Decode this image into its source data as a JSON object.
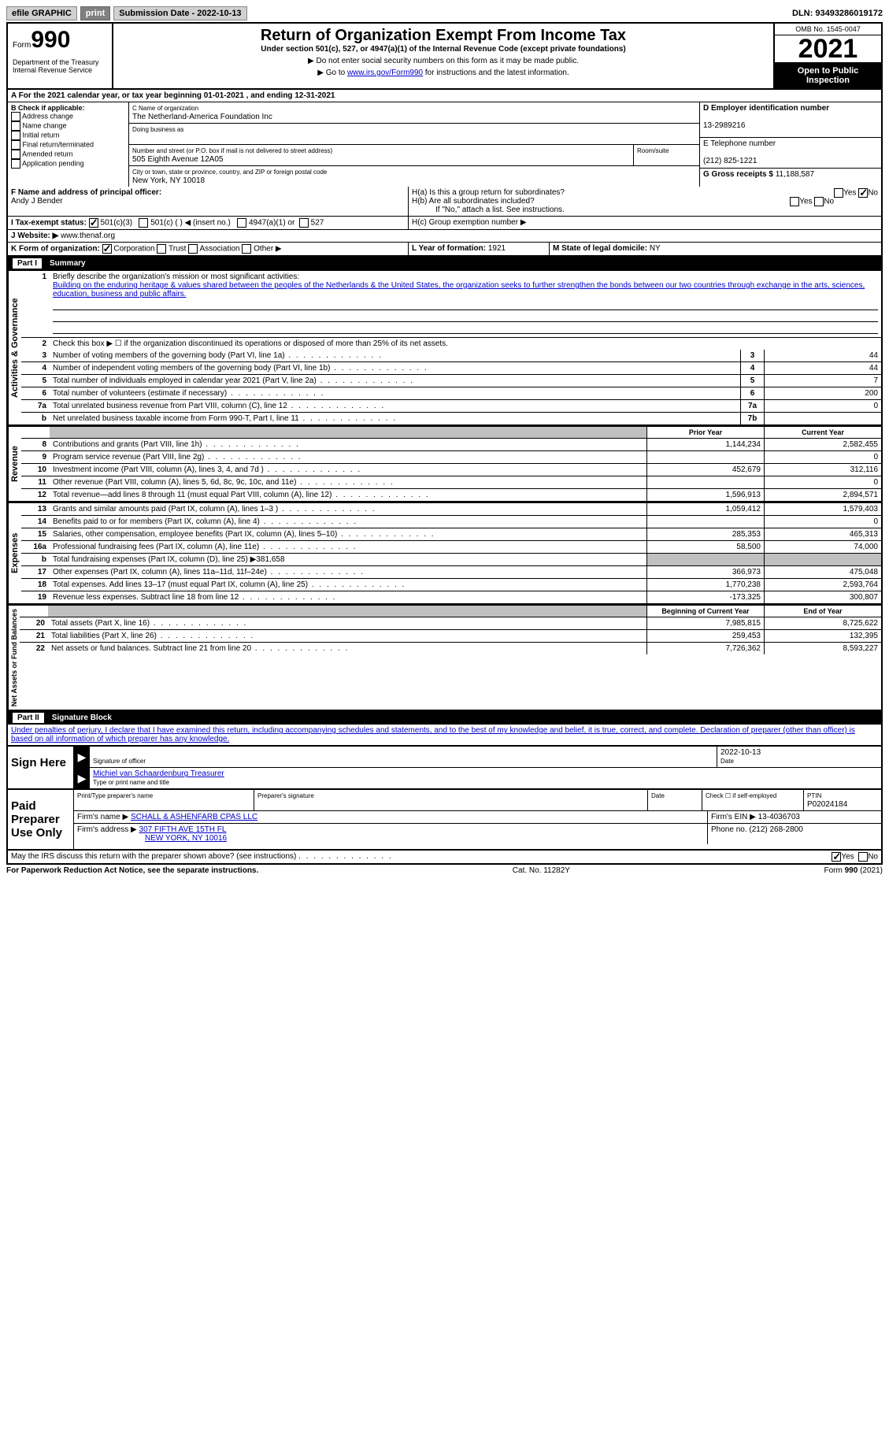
{
  "topbar": {
    "efile": "efile GRAPHIC",
    "print": "print",
    "submission_label": "Submission Date - ",
    "submission_date": "2022-10-13",
    "dln_label": "DLN: ",
    "dln": "93493286019172"
  },
  "header": {
    "form_label": "Form",
    "form_number": "990",
    "dept": "Department of the Treasury\nInternal Revenue Service",
    "title": "Return of Organization Exempt From Income Tax",
    "subtitle": "Under section 501(c), 527, or 4947(a)(1) of the Internal Revenue Code (except private foundations)",
    "note1": "▶ Do not enter social security numbers on this form as it may be made public.",
    "note2_pre": "▶ Go to ",
    "note2_link": "www.irs.gov/Form990",
    "note2_post": " for instructions and the latest information.",
    "omb": "OMB No. 1545-0047",
    "year": "2021",
    "open": "Open to Public Inspection"
  },
  "box_a": "A For the 2021 calendar year, or tax year beginning 01-01-2021   , and ending 12-31-2021",
  "box_b": {
    "label": "B Check if applicable:",
    "items": [
      "Address change",
      "Name change",
      "Initial return",
      "Final return/terminated",
      "Amended return",
      "Application pending"
    ]
  },
  "box_c": {
    "name_label": "C Name of organization",
    "name": "The Netherland-America Foundation Inc",
    "dba_label": "Doing business as",
    "dba": "",
    "addr_label": "Number and street (or P.O. box if mail is not delivered to street address)",
    "room_label": "Room/suite",
    "addr": "505 Eighth Avenue 12A05",
    "city_label": "City or town, state or province, country, and ZIP or foreign postal code",
    "city": "New York, NY  10018"
  },
  "box_d": {
    "label": "D Employer identification number",
    "value": "13-2989216"
  },
  "box_e": {
    "label": "E Telephone number",
    "value": "(212) 825-1221"
  },
  "box_g": {
    "label": "G Gross receipts $ ",
    "value": "11,188,587"
  },
  "box_f": {
    "label": "F Name and address of principal officer:",
    "name": "Andy J Bender"
  },
  "box_h": {
    "ha": "H(a)  Is this a group return for subordinates?",
    "hb": "H(b)  Are all subordinates included?",
    "hb_note": "If \"No,\" attach a list. See instructions.",
    "hc": "H(c)  Group exemption number ▶",
    "yes": "Yes",
    "no": "No"
  },
  "box_i": {
    "label": "I   Tax-exempt status:",
    "c501c3": "501(c)(3)",
    "c501c": "501(c) (  ) ◀ (insert no.)",
    "c4947": "4947(a)(1) or",
    "c527": "527"
  },
  "box_j": {
    "label": "J   Website: ▶ ",
    "value": "www.thenaf.org"
  },
  "box_k": {
    "label": "K Form of organization:",
    "corp": "Corporation",
    "trust": "Trust",
    "assoc": "Association",
    "other": "Other ▶"
  },
  "box_l": {
    "label": "L Year of formation: ",
    "value": "1921"
  },
  "box_m": {
    "label": "M State of legal domicile: ",
    "value": "NY"
  },
  "part1": {
    "label": "Part I",
    "title": "Summary",
    "section_ag": "Activities & Governance",
    "section_rev": "Revenue",
    "section_exp": "Expenses",
    "section_net": "Net Assets or Fund Balances",
    "line1_label": "Briefly describe the organization's mission or most significant activities:",
    "line1_text": "Building on the enduring heritage & values shared between the peoples of the Netherlands & the United States, the organization seeks to further strengthen the bonds between our two countries through exchange in the arts, sciences, education, business and public affairs.",
    "line2": "Check this box ▶ ☐ if the organization discontinued its operations or disposed of more than 25% of its net assets.",
    "rows": [
      {
        "n": "3",
        "d": "Number of voting members of the governing body (Part VI, line 1a)",
        "box": "3",
        "v": "44"
      },
      {
        "n": "4",
        "d": "Number of independent voting members of the governing body (Part VI, line 1b)",
        "box": "4",
        "v": "44"
      },
      {
        "n": "5",
        "d": "Total number of individuals employed in calendar year 2021 (Part V, line 2a)",
        "box": "5",
        "v": "7"
      },
      {
        "n": "6",
        "d": "Total number of volunteers (estimate if necessary)",
        "box": "6",
        "v": "200"
      },
      {
        "n": "7a",
        "d": "Total unrelated business revenue from Part VIII, column (C), line 12",
        "box": "7a",
        "v": "0"
      },
      {
        "n": "b",
        "d": "Net unrelated business taxable income from Form 990-T, Part I, line 11",
        "box": "7b",
        "v": ""
      }
    ],
    "prior_label": "Prior Year",
    "current_label": "Current Year",
    "rev_rows": [
      {
        "n": "8",
        "d": "Contributions and grants (Part VIII, line 1h)",
        "p": "1,144,234",
        "c": "2,582,455"
      },
      {
        "n": "9",
        "d": "Program service revenue (Part VIII, line 2g)",
        "p": "",
        "c": "0"
      },
      {
        "n": "10",
        "d": "Investment income (Part VIII, column (A), lines 3, 4, and 7d )",
        "p": "452,679",
        "c": "312,116"
      },
      {
        "n": "11",
        "d": "Other revenue (Part VIII, column (A), lines 5, 6d, 8c, 9c, 10c, and 11e)",
        "p": "",
        "c": "0"
      },
      {
        "n": "12",
        "d": "Total revenue—add lines 8 through 11 (must equal Part VIII, column (A), line 12)",
        "p": "1,596,913",
        "c": "2,894,571"
      }
    ],
    "exp_rows": [
      {
        "n": "13",
        "d": "Grants and similar amounts paid (Part IX, column (A), lines 1–3 )",
        "p": "1,059,412",
        "c": "1,579,403"
      },
      {
        "n": "14",
        "d": "Benefits paid to or for members (Part IX, column (A), line 4)",
        "p": "",
        "c": "0"
      },
      {
        "n": "15",
        "d": "Salaries, other compensation, employee benefits (Part IX, column (A), lines 5–10)",
        "p": "285,353",
        "c": "465,313"
      },
      {
        "n": "16a",
        "d": "Professional fundraising fees (Part IX, column (A), line 11e)",
        "p": "58,500",
        "c": "74,000"
      },
      {
        "n": "b",
        "d": "Total fundraising expenses (Part IX, column (D), line 25) ▶381,658",
        "p": "shaded",
        "c": "shaded"
      },
      {
        "n": "17",
        "d": "Other expenses (Part IX, column (A), lines 11a–11d, 11f–24e)",
        "p": "366,973",
        "c": "475,048"
      },
      {
        "n": "18",
        "d": "Total expenses. Add lines 13–17 (must equal Part IX, column (A), line 25)",
        "p": "1,770,238",
        "c": "2,593,764"
      },
      {
        "n": "19",
        "d": "Revenue less expenses. Subtract line 18 from line 12",
        "p": "-173,325",
        "c": "300,807"
      }
    ],
    "begin_label": "Beginning of Current Year",
    "end_label": "End of Year",
    "net_rows": [
      {
        "n": "20",
        "d": "Total assets (Part X, line 16)",
        "p": "7,985,815",
        "c": "8,725,622"
      },
      {
        "n": "21",
        "d": "Total liabilities (Part X, line 26)",
        "p": "259,453",
        "c": "132,395"
      },
      {
        "n": "22",
        "d": "Net assets or fund balances. Subtract line 21 from line 20",
        "p": "7,726,362",
        "c": "8,593,227"
      }
    ]
  },
  "part2": {
    "label": "Part II",
    "title": "Signature Block",
    "declaration": "Under penalties of perjury, I declare that I have examined this return, including accompanying schedules and statements, and to the best of my knowledge and belief, it is true, correct, and complete. Declaration of preparer (other than officer) is based on all information of which preparer has any knowledge.",
    "sign_here": "Sign Here",
    "sig_officer": "Signature of officer",
    "sig_date": "2022-10-13",
    "date_label": "Date",
    "officer_name": "Michiel van Schaardenburg Treasurer",
    "type_label": "Type or print name and title",
    "paid": "Paid Preparer Use Only",
    "prep_name_label": "Print/Type preparer's name",
    "prep_sig_label": "Preparer's signature",
    "check_self": "Check ☐ if self-employed",
    "ptin_label": "PTIN",
    "ptin": "P02024184",
    "firm_name_label": "Firm's name    ▶ ",
    "firm_name": "SCHALL & ASHENFARB CPAS LLC",
    "firm_ein_label": "Firm's EIN ▶ ",
    "firm_ein": "13-4036703",
    "firm_addr_label": "Firm's address ▶ ",
    "firm_addr1": "307 FIFTH AVE 15TH FL",
    "firm_addr2": "NEW YORK, NY  10016",
    "phone_label": "Phone no. ",
    "phone": "(212) 268-2800",
    "discuss": "May the IRS discuss this return with the preparer shown above? (see instructions)",
    "yes": "Yes",
    "no": "No"
  },
  "footer": {
    "left": "For Paperwork Reduction Act Notice, see the separate instructions.",
    "mid": "Cat. No. 11282Y",
    "right": "Form 990 (2021)"
  }
}
